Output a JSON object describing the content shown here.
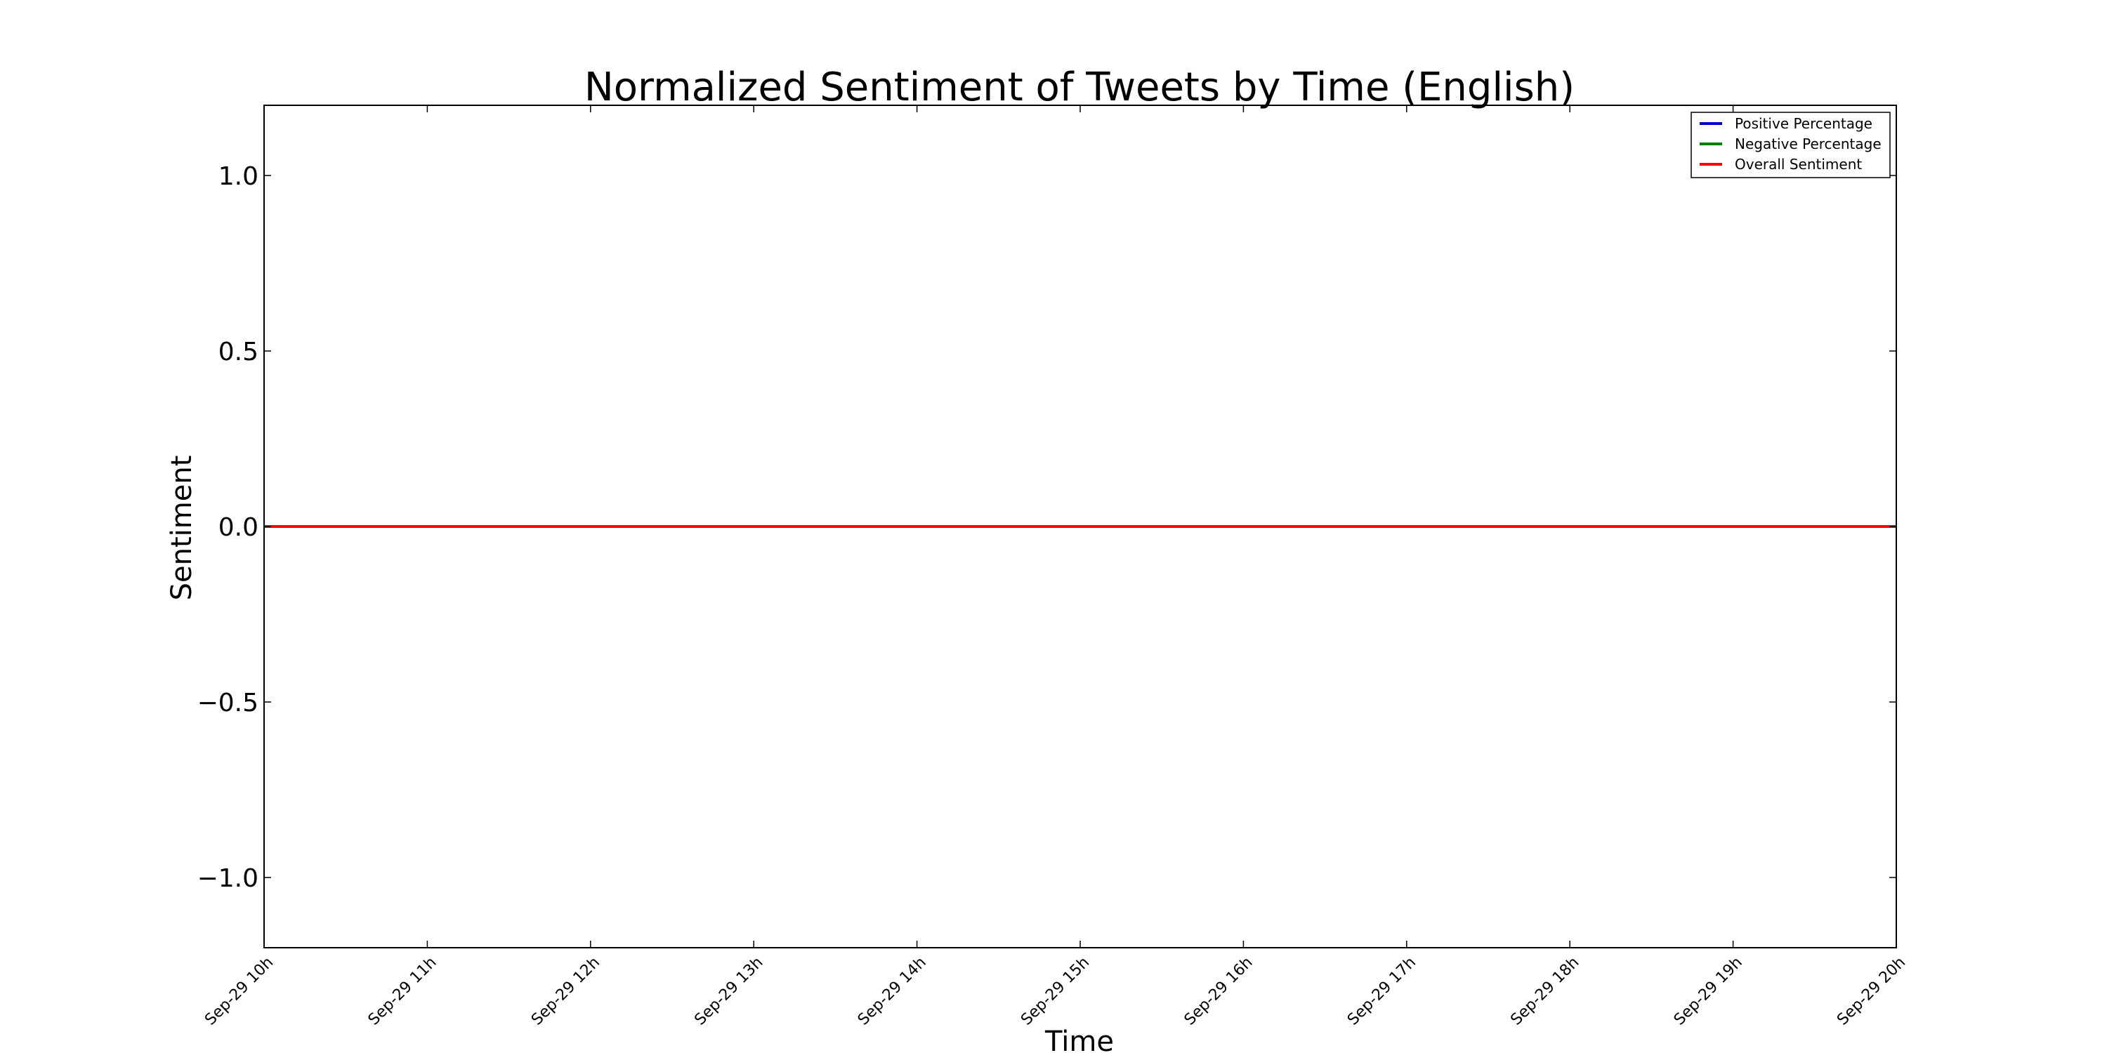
{
  "chart_data": {
    "type": "line",
    "title": "Normalized Sentiment of Tweets by Time (English)",
    "xlabel": "Time",
    "ylabel": "Sentiment",
    "ylim": [
      -1.2,
      1.2
    ],
    "xlim": [
      "Sep-29 10h",
      "Sep-29 20h"
    ],
    "x_tick_labels": [
      "Sep-29 10h",
      "Sep-29 11h",
      "Sep-29 12h",
      "Sep-29 13h",
      "Sep-29 14h",
      "Sep-29 15h",
      "Sep-29 16h",
      "Sep-29 17h",
      "Sep-29 18h",
      "Sep-29 19h",
      "Sep-29 20h"
    ],
    "y_ticks": [
      -1.0,
      -0.5,
      0.0,
      0.5,
      1.0
    ],
    "y_tick_labels": [
      "−1.0",
      "−0.5",
      "0.0",
      "0.5",
      "1.0"
    ],
    "grid": false,
    "legend_position": "top-right",
    "series": [
      {
        "name": "Positive Percentage",
        "color": "#0000bf",
        "x": [
          "Sep-29 10h",
          "Sep-29 20h"
        ],
        "y": [
          0,
          0
        ]
      },
      {
        "name": "Negative Percentage",
        "color": "#008000",
        "x": [
          "Sep-29 10h",
          "Sep-29 20h"
        ],
        "y": [
          0,
          0
        ]
      },
      {
        "name": "Overall Sentiment",
        "color": "#ff0000",
        "x": [
          "Sep-29 10h",
          "Sep-29 20h"
        ],
        "y": [
          0,
          0
        ]
      }
    ]
  }
}
